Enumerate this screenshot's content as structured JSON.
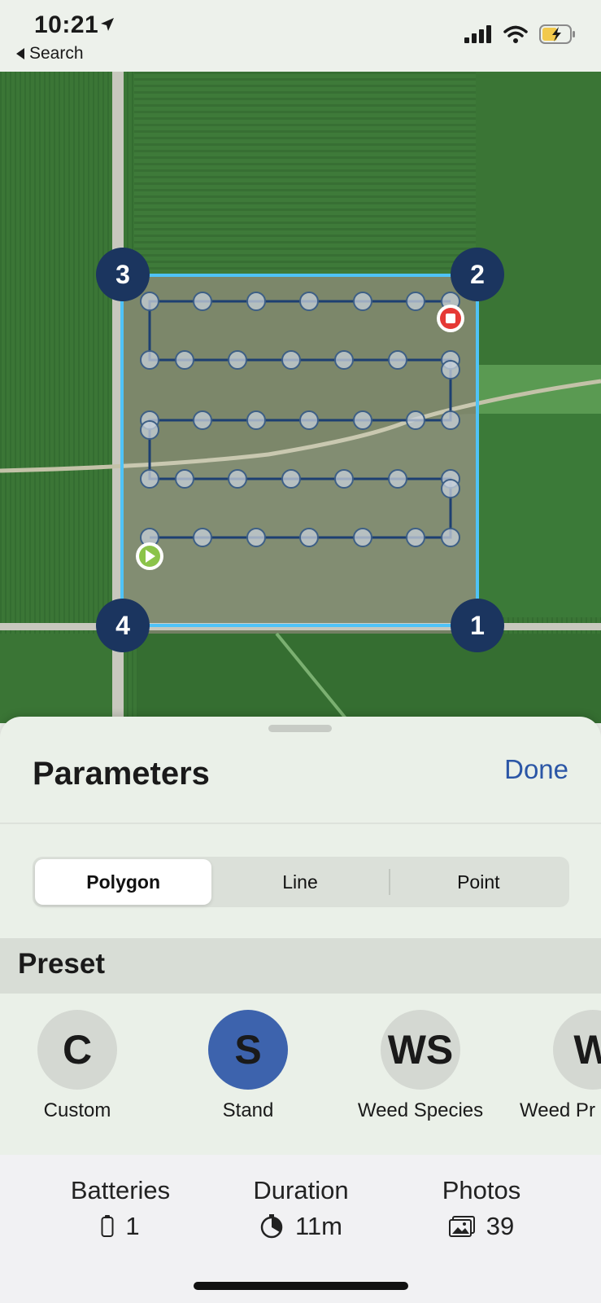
{
  "status_bar": {
    "time": "10:21",
    "back_label": "Search",
    "icons": [
      "location-arrow-icon",
      "signal-icon",
      "wifi-icon",
      "battery-charging-icon"
    ]
  },
  "map": {
    "vertices": [
      "1",
      "2",
      "3",
      "4"
    ],
    "colors": {
      "boundary": "#4fc3f7",
      "path": "#1d3f72",
      "vertex_badge": "#1b355f",
      "start": "#8bc34a",
      "end": "#e53935"
    },
    "icons": [
      "play-icon",
      "stop-icon"
    ]
  },
  "sheet": {
    "title": "Parameters",
    "done_label": "Done",
    "segments": [
      {
        "label": "Polygon",
        "active": true
      },
      {
        "label": "Line",
        "active": false
      },
      {
        "label": "Point",
        "active": false
      }
    ],
    "preset_header": "Preset",
    "presets": [
      {
        "abbr": "C",
        "label": "Custom",
        "selected": false
      },
      {
        "abbr": "S",
        "label": "Stand",
        "selected": true
      },
      {
        "abbr": "WS",
        "label": "Weed Species",
        "selected": false
      },
      {
        "abbr": "W",
        "label": "Weed Pr",
        "selected": false
      }
    ]
  },
  "summary": {
    "batteries": {
      "label": "Batteries",
      "value": "1",
      "icon": "battery-icon"
    },
    "duration": {
      "label": "Duration",
      "value": "11m",
      "icon": "timer-icon"
    },
    "photos": {
      "label": "Photos",
      "value": "39",
      "icon": "photo-icon"
    }
  },
  "accent_color": "#2b56a6"
}
